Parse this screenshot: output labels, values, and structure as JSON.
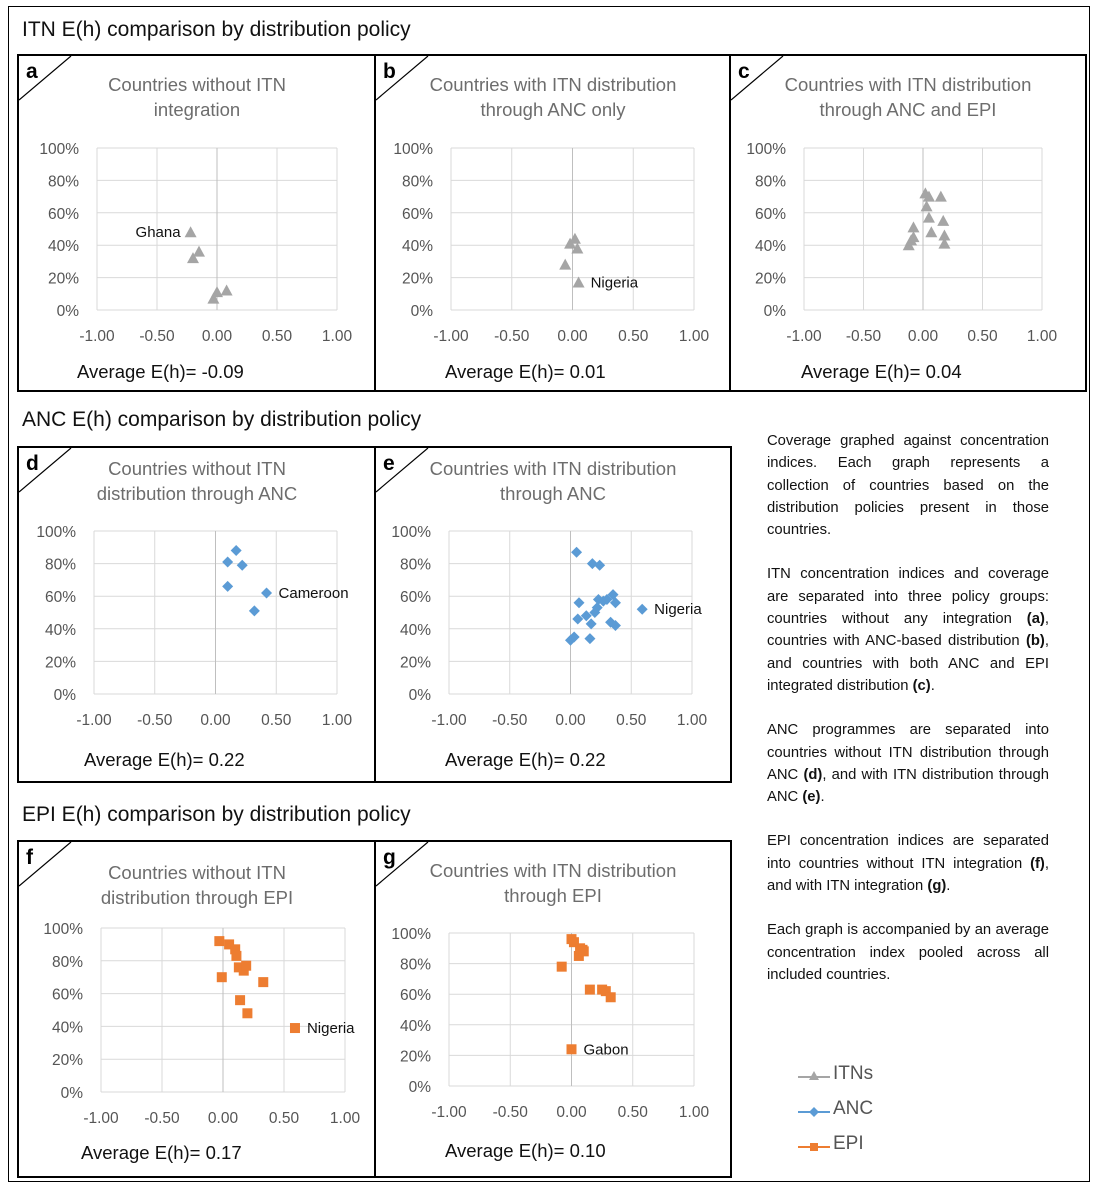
{
  "sections": {
    "itn_title": "ITN E(h) comparison by distribution policy",
    "anc_title": "ANC E(h) comparison by distribution policy",
    "epi_title": "EPI E(h) comparison by distribution policy"
  },
  "description": {
    "p1": "Coverage graphed against concentration indices. Each graph represents a collection of countries based on the distribution policies present in those countries.",
    "p2_a": "ITN concentration indices and coverage are separated into three policy groups: countries without any integration ",
    "p2_b": "(a)",
    "p2_c": ", countries with ANC-based distribution ",
    "p2_d": "(b)",
    "p2_e": ", and countries with both ANC and EPI integrated distribution ",
    "p2_f": "(c)",
    "p2_g": ".",
    "p3_a": "ANC programmes are separated into countries without ITN distribution through ANC ",
    "p3_b": "(d)",
    "p3_c": ", and with ITN distribution through ANC ",
    "p3_d": "(e)",
    "p3_e": ".",
    "p4_a": "EPI concentration indices are separated into countries without ITN integration ",
    "p4_b": "(f)",
    "p4_c": ", and with ITN integration ",
    "p4_d": "(g)",
    "p4_e": ".",
    "p5": "Each graph is accompanied by an average concentration index pooled across all included countries."
  },
  "legend": [
    {
      "label": "ITNs",
      "marker": "triangle",
      "color": "#a5a5a5"
    },
    {
      "label": "ANC",
      "marker": "diamond",
      "color": "#5b9bd5"
    },
    {
      "label": "EPI",
      "marker": "square",
      "color": "#ed7d31"
    }
  ],
  "chart_data": [
    {
      "id": "a",
      "type": "scatter",
      "series": "ITNs",
      "marker": "triangle",
      "color": "#a5a5a5",
      "title": "Countries without ITN\nintegration",
      "average_label": "Average  E(h)= -0.09",
      "xlim": [
        -1,
        1
      ],
      "ylim": [
        0,
        100
      ],
      "x_ticks": [
        "-1.00",
        "-0.50",
        "0.00",
        "0.50",
        "1.00"
      ],
      "y_ticks": [
        "0%",
        "20%",
        "40%",
        "60%",
        "80%",
        "100%"
      ],
      "points": [
        [
          -0.22,
          48
        ],
        [
          -0.2,
          32
        ],
        [
          -0.15,
          36
        ],
        [
          -0.03,
          7
        ],
        [
          0.0,
          11
        ],
        [
          0.08,
          12
        ]
      ],
      "annotations": [
        {
          "text": "Ghana",
          "x": -0.22,
          "y": 48,
          "side": "left"
        }
      ]
    },
    {
      "id": "b",
      "type": "scatter",
      "series": "ITNs",
      "marker": "triangle",
      "color": "#a5a5a5",
      "title": "Countries with ITN distribution\nthrough ANC only",
      "average_label": "Average  E(h)= 0.01",
      "xlim": [
        -1,
        1
      ],
      "ylim": [
        0,
        100
      ],
      "x_ticks": [
        "-1.00",
        "-0.50",
        "0.00",
        "0.50",
        "1.00"
      ],
      "y_ticks": [
        "0%",
        "20%",
        "40%",
        "60%",
        "80%",
        "100%"
      ],
      "points": [
        [
          -0.06,
          28
        ],
        [
          -0.02,
          41
        ],
        [
          0.02,
          44
        ],
        [
          0.04,
          38
        ],
        [
          0.05,
          17
        ]
      ],
      "annotations": [
        {
          "text": "Nigeria",
          "x": 0.05,
          "y": 17,
          "side": "right"
        }
      ]
    },
    {
      "id": "c",
      "type": "scatter",
      "series": "ITNs",
      "marker": "triangle",
      "color": "#a5a5a5",
      "title": "Countries with ITN distribution\nthrough ANC and EPI",
      "average_label": "Average  E(h)= 0.04",
      "xlim": [
        -1,
        1
      ],
      "ylim": [
        0,
        100
      ],
      "x_ticks": [
        "-1.00",
        "-0.50",
        "0.00",
        "0.50",
        "1.00"
      ],
      "y_ticks": [
        "0%",
        "20%",
        "40%",
        "60%",
        "80%",
        "100%"
      ],
      "points": [
        [
          -0.12,
          40
        ],
        [
          -0.1,
          43
        ],
        [
          -0.08,
          45
        ],
        [
          -0.08,
          51
        ],
        [
          0.02,
          72
        ],
        [
          0.03,
          64
        ],
        [
          0.05,
          70
        ],
        [
          0.05,
          57
        ],
        [
          0.07,
          48
        ],
        [
          0.15,
          70
        ],
        [
          0.17,
          55
        ],
        [
          0.18,
          46
        ],
        [
          0.18,
          41
        ]
      ],
      "annotations": []
    },
    {
      "id": "d",
      "type": "scatter",
      "series": "ANC",
      "marker": "diamond",
      "color": "#5b9bd5",
      "title": "Countries without ITN\ndistribution through ANC",
      "average_label": "Average  E(h)= 0.22",
      "xlim": [
        -1,
        1
      ],
      "ylim": [
        0,
        100
      ],
      "x_ticks": [
        "-1.00",
        "-0.50",
        "0.00",
        "0.50",
        "1.00"
      ],
      "y_ticks": [
        "0%",
        "20%",
        "40%",
        "60%",
        "80%",
        "100%"
      ],
      "points": [
        [
          0.1,
          81
        ],
        [
          0.1,
          66
        ],
        [
          0.17,
          88
        ],
        [
          0.22,
          79
        ],
        [
          0.32,
          51
        ],
        [
          0.42,
          62
        ]
      ],
      "annotations": [
        {
          "text": "Cameroon",
          "x": 0.42,
          "y": 62,
          "side": "right"
        }
      ]
    },
    {
      "id": "e",
      "type": "scatter",
      "series": "ANC",
      "marker": "diamond",
      "color": "#5b9bd5",
      "title": "Countries with ITN distribution\nthrough ANC",
      "average_label": "Average  E(h)= 0.22",
      "xlim": [
        -1,
        1
      ],
      "ylim": [
        0,
        100
      ],
      "x_ticks": [
        "-1.00",
        "-0.50",
        "0.00",
        "0.50",
        "1.00"
      ],
      "y_ticks": [
        "0%",
        "20%",
        "40%",
        "60%",
        "80%",
        "100%"
      ],
      "points": [
        [
          0.0,
          33
        ],
        [
          0.03,
          35
        ],
        [
          0.05,
          87
        ],
        [
          0.06,
          46
        ],
        [
          0.07,
          56
        ],
        [
          0.13,
          48
        ],
        [
          0.16,
          34
        ],
        [
          0.17,
          43
        ],
        [
          0.18,
          80
        ],
        [
          0.2,
          50
        ],
        [
          0.22,
          53
        ],
        [
          0.23,
          58
        ],
        [
          0.24,
          79
        ],
        [
          0.27,
          57
        ],
        [
          0.3,
          58
        ],
        [
          0.33,
          44
        ],
        [
          0.35,
          61
        ],
        [
          0.37,
          56
        ],
        [
          0.37,
          42
        ],
        [
          0.59,
          52
        ]
      ],
      "annotations": [
        {
          "text": "Nigeria",
          "x": 0.59,
          "y": 52,
          "side": "right"
        }
      ]
    },
    {
      "id": "f",
      "type": "scatter",
      "series": "EPI",
      "marker": "square",
      "color": "#ed7d31",
      "title": "Countries without ITN\ndistribution through EPI",
      "average_label": "Average  E(h)= 0.17",
      "xlim": [
        -1,
        1
      ],
      "ylim": [
        0,
        100
      ],
      "x_ticks": [
        "-1.00",
        "-0.50",
        "0.00",
        "0.50",
        "1.00"
      ],
      "y_ticks": [
        "0%",
        "20%",
        "40%",
        "60%",
        "80%",
        "100%"
      ],
      "points": [
        [
          -0.03,
          92
        ],
        [
          -0.01,
          70
        ],
        [
          0.05,
          90
        ],
        [
          0.1,
          87
        ],
        [
          0.11,
          83
        ],
        [
          0.13,
          76
        ],
        [
          0.14,
          56
        ],
        [
          0.17,
          74
        ],
        [
          0.19,
          77
        ],
        [
          0.2,
          48
        ],
        [
          0.33,
          67
        ],
        [
          0.59,
          39
        ]
      ],
      "annotations": [
        {
          "text": "Nigeria",
          "x": 0.59,
          "y": 39,
          "side": "right"
        }
      ]
    },
    {
      "id": "g",
      "type": "scatter",
      "series": "EPI",
      "marker": "square",
      "color": "#ed7d31",
      "title": "Countries with ITN distribution\nthrough EPI",
      "average_label": "Average  E(h)= 0.10",
      "xlim": [
        -1,
        1
      ],
      "ylim": [
        0,
        100
      ],
      "x_ticks": [
        "-1.00",
        "-0.50",
        "0.00",
        "0.50",
        "1.00"
      ],
      "y_ticks": [
        "0%",
        "20%",
        "40%",
        "60%",
        "80%",
        "100%"
      ],
      "points": [
        [
          -0.08,
          78
        ],
        [
          0.0,
          96
        ],
        [
          0.02,
          94
        ],
        [
          0.06,
          85
        ],
        [
          0.07,
          90
        ],
        [
          0.09,
          89
        ],
        [
          0.1,
          88
        ],
        [
          0.15,
          63
        ],
        [
          0.25,
          63
        ],
        [
          0.28,
          62
        ],
        [
          0.32,
          58
        ],
        [
          0.0,
          24
        ]
      ],
      "annotations": [
        {
          "text": "Gabon",
          "x": 0.0,
          "y": 24,
          "side": "right"
        }
      ]
    }
  ]
}
